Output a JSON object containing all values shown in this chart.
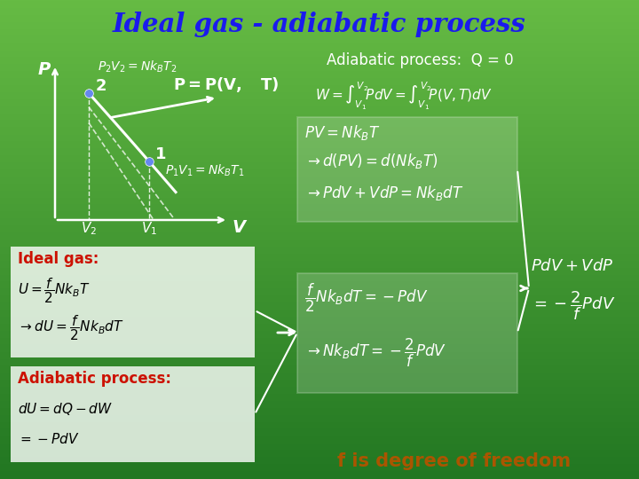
{
  "title": "Ideal gas - adiabatic process",
  "title_color": "#1a1aee",
  "bg_top": "#66bb44",
  "bg_bottom": "#227722",
  "white_box_color": "#ffffff",
  "red_label_color": "#cc1100",
  "freedom_color": "#aa5500",
  "adiabatic_label": "Adiabatic process:  Q = 0",
  "freedom_label": "f is degree of freedom",
  "ideal_gas_label": "Ideal gas:",
  "adiabatic_process_label": "Adiabatic process:"
}
